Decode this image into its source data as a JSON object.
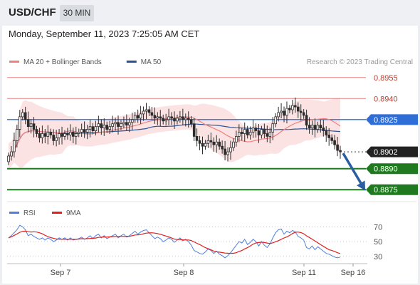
{
  "header": {
    "pair": "USD/CHF",
    "timeframe": "30 MIN"
  },
  "datetime": "Monday, September 11, 2023 7:25:05 AM CET",
  "colors": {
    "ma20": "#f08080",
    "ma50": "#2a5298",
    "band_fill": "#fbd9d9",
    "candle_up": "#ffffff",
    "candle_down": "#2c2c2c",
    "support": "#1f7a1f",
    "resistance": "#e88080",
    "pivot": "#2f6ed6",
    "current": "#222222",
    "rsi": "#4f7fdc",
    "rsi_ma": "#e02020",
    "arrow": "#2b5ea0"
  },
  "chart_data": [
    {
      "type": "candlestick",
      "legend": [
        {
          "label": "MA 20 + Bollinger Bands",
          "color": "#f08080"
        },
        {
          "label": "MA 50",
          "color": "#2a5298"
        }
      ],
      "credit": "Research © 2023 Trading Central",
      "ylim": [
        0.8868,
        0.8962
      ],
      "x_ticks": [
        "Sep 7",
        "Sep 8",
        "Sep 11",
        "Sep 16"
      ],
      "levels": [
        {
          "value": 0.8955,
          "label": "0.8955",
          "kind": "resistance"
        },
        {
          "value": 0.894,
          "label": "0.8940",
          "kind": "resistance"
        },
        {
          "value": 0.8925,
          "label": "0.8925",
          "kind": "pivot"
        },
        {
          "value": 0.8902,
          "label": "0.8902",
          "kind": "current"
        },
        {
          "value": 0.889,
          "label": "0.8890",
          "kind": "support"
        },
        {
          "value": 0.8875,
          "label": "0.8875",
          "kind": "support"
        }
      ],
      "forecast": {
        "from": 0.8902,
        "to": 0.8875,
        "direction": "down"
      },
      "close": [
        0.8899,
        0.8902,
        0.891,
        0.8918,
        0.8927,
        0.893,
        0.8925,
        0.892,
        0.8922,
        0.8918,
        0.8915,
        0.8912,
        0.8915,
        0.8913,
        0.8916,
        0.8914,
        0.891,
        0.8912,
        0.8915,
        0.8913,
        0.8915,
        0.8914,
        0.8916,
        0.8913,
        0.8915,
        0.8916,
        0.8918,
        0.8916,
        0.8918,
        0.892,
        0.8917,
        0.892,
        0.8922,
        0.8919,
        0.8921,
        0.8918,
        0.892,
        0.8922,
        0.8923,
        0.892,
        0.8922,
        0.8923,
        0.8921,
        0.8923,
        0.8925,
        0.8928,
        0.8926,
        0.8929,
        0.8931,
        0.8932,
        0.893,
        0.8928,
        0.8926,
        0.8927,
        0.8926,
        0.8924,
        0.8925,
        0.8927,
        0.8926,
        0.8924,
        0.8926,
        0.8927,
        0.8925,
        0.8926,
        0.8925,
        0.8922,
        0.8913,
        0.891,
        0.8908,
        0.8906,
        0.8908,
        0.891,
        0.8909,
        0.8907,
        0.8909,
        0.8906,
        0.8904,
        0.89,
        0.8902,
        0.8905,
        0.8909,
        0.8913,
        0.8916,
        0.8915,
        0.8918,
        0.8914,
        0.8916,
        0.8919,
        0.8917,
        0.8914,
        0.8918,
        0.8915,
        0.8913,
        0.8916,
        0.8922,
        0.8927,
        0.893,
        0.8931,
        0.8928,
        0.8933,
        0.8932,
        0.8935,
        0.8934,
        0.8931,
        0.893,
        0.8928,
        0.8921,
        0.8919,
        0.8921,
        0.8918,
        0.8921,
        0.8919,
        0.8917,
        0.8914,
        0.8912,
        0.891,
        0.8907,
        0.8903,
        0.8902
      ]
    },
    {
      "type": "line",
      "legend": [
        {
          "label": "RSI",
          "color": "#4f7fdc"
        },
        {
          "label": "9MA",
          "color": "#e02020"
        }
      ],
      "ylim": [
        25,
        78
      ],
      "y_ticks": [
        70,
        50,
        30
      ],
      "rsi": [
        55,
        58,
        62,
        66,
        72,
        70,
        66,
        58,
        60,
        57,
        55,
        53,
        55,
        52,
        55,
        53,
        50,
        52,
        55,
        53,
        55,
        52,
        55,
        52,
        53,
        54,
        56,
        53,
        55,
        58,
        54,
        58,
        60,
        55,
        58,
        54,
        56,
        58,
        60,
        55,
        58,
        60,
        56,
        58,
        61,
        64,
        60,
        63,
        65,
        66,
        62,
        58,
        54,
        56,
        54,
        50,
        52,
        55,
        53,
        49,
        52,
        55,
        51,
        53,
        50,
        45,
        38,
        36,
        34,
        33,
        36,
        40,
        38,
        34,
        37,
        33,
        31,
        28,
        31,
        35,
        40,
        45,
        50,
        48,
        53,
        46,
        49,
        53,
        50,
        44,
        50,
        45,
        42,
        47,
        55,
        62,
        66,
        67,
        60,
        64,
        62,
        65,
        63,
        57,
        55,
        52,
        42,
        40,
        44,
        39,
        43,
        40,
        37,
        34,
        33,
        31,
        29,
        28,
        29
      ]
    }
  ]
}
